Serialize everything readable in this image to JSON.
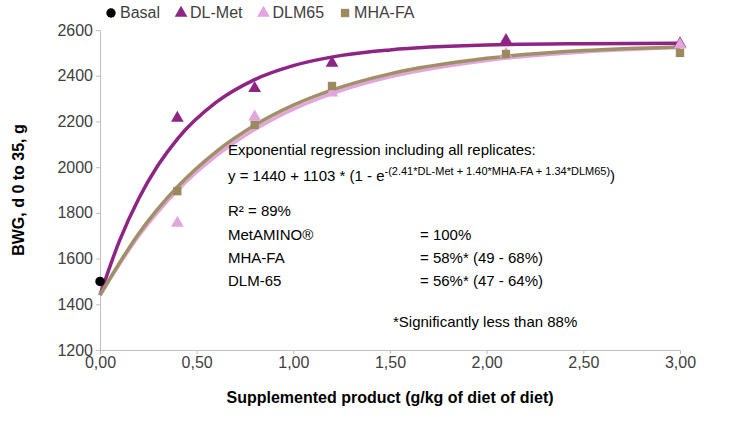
{
  "chart_data": {
    "type": "scatter",
    "x_label": "Supplemented product (g/kg of diet of diet)",
    "y_label": "BWG, d 0 to 35, g",
    "xlim": [
      0,
      3
    ],
    "ylim": [
      1200,
      2600
    ],
    "xticks": [
      {
        "value": 0,
        "label": "0,00"
      },
      {
        "value": 0.5,
        "label": "0,50"
      },
      {
        "value": 1,
        "label": "1,00"
      },
      {
        "value": 1.5,
        "label": "1,50"
      },
      {
        "value": 2,
        "label": "2,00"
      },
      {
        "value": 2.5,
        "label": "2,50"
      },
      {
        "value": 3,
        "label": "3,00"
      }
    ],
    "yticks": [
      1200,
      1400,
      1600,
      1800,
      2000,
      2200,
      2400,
      2600
    ],
    "grid": false,
    "legend": "top",
    "series": [
      {
        "type": "line",
        "color": "#8e2585",
        "line_style": "solid",
        "x": [
          0,
          0.1,
          0.2,
          0.3,
          0.4,
          0.6,
          0.8,
          1,
          1.25,
          1.5,
          2,
          2.5,
          3
        ],
        "values": [
          1440,
          1676,
          1862,
          2008,
          2123,
          2283,
          2383,
          2444,
          2489,
          2513,
          2534,
          2540,
          2542
        ]
      },
      {
        "type": "line",
        "color": "#e2a6dc",
        "line_style": "solid",
        "x": [
          0,
          0.2,
          0.4,
          0.6,
          0.8,
          1,
          1.25,
          1.5,
          2,
          2.5,
          3
        ],
        "values": [
          1440,
          1699,
          1898,
          2049,
          2165,
          2254,
          2336,
          2395,
          2467,
          2504,
          2523
        ]
      },
      {
        "type": "line",
        "color": "#a09068",
        "line_style": "solid",
        "x": [
          0,
          0.2,
          0.4,
          0.6,
          0.8,
          1,
          1.25,
          1.5,
          2,
          2.5,
          3
        ],
        "values": [
          1440,
          1709,
          1913,
          2067,
          2183,
          2271,
          2351,
          2408,
          2476,
          2510,
          2526
        ]
      },
      {
        "name": "Basal",
        "type": "scatter",
        "marker": "circle",
        "color": "#000000",
        "x": [
          0
        ],
        "values": [
          1500
        ]
      },
      {
        "name": "DL-Met",
        "type": "scatter",
        "marker": "triangle",
        "color": "#8e2585",
        "x": [
          0.4,
          0.8,
          1.2,
          2.1,
          3
        ],
        "values": [
          2215,
          2345,
          2455,
          2555,
          2540
        ]
      },
      {
        "name": "DLM65",
        "type": "scatter",
        "marker": "triangle",
        "color": "#e2a6dc",
        "x": [
          0.4,
          0.8,
          1.2,
          2.1,
          3
        ],
        "values": [
          1755,
          2220,
          2325,
          2495,
          2535
        ]
      },
      {
        "name": "MHA-FA",
        "type": "scatter",
        "marker": "square",
        "color": "#9c8a5f",
        "x": [
          0.4,
          0.8,
          1.2,
          2.1,
          3
        ],
        "values": [
          1895,
          2185,
          2355,
          2495,
          2500
        ]
      }
    ],
    "annotation": {
      "heading": "Exponential regression including all replicates:",
      "equation": [
        "y = 1440 + 1103 * (1 - e",
        "-(2.41*DL-Met + 1.40*MHA-FA + 1.34*DLM65)",
        ")"
      ],
      "r2": "R² = 89%",
      "rows": [
        [
          "MetAMINO®",
          "= 100%"
        ],
        [
          "MHA-FA",
          "= 58%* (49 - 68%)"
        ],
        [
          "DLM-65",
          "= 56%* (47 - 64%)"
        ]
      ],
      "footnote": "*Significantly less than 88%"
    }
  }
}
